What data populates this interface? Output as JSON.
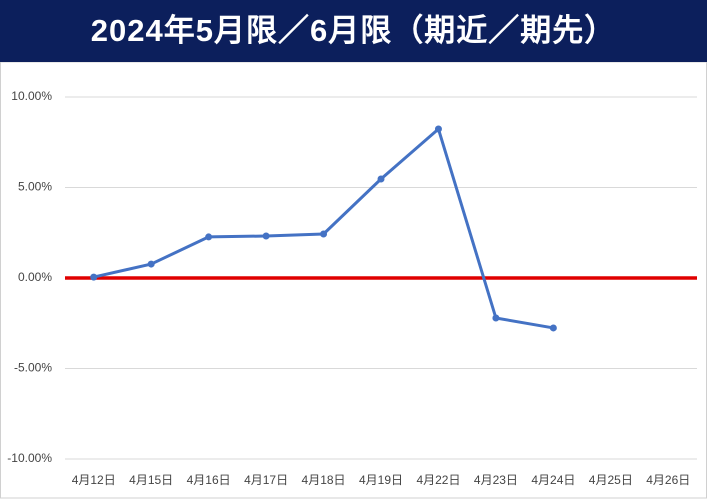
{
  "chart_data": {
    "type": "line",
    "title": "2024年5月限／6月限（期近／期先）",
    "categories": [
      "4月12日",
      "4月15日",
      "4月16日",
      "4月17日",
      "4月18日",
      "4月19日",
      "4月22日",
      "4月23日",
      "4月24日",
      "4月25日",
      "4月26日"
    ],
    "series": [
      {
        "name": "5月限／6月限",
        "color": "#4472c4",
        "values": [
          0.05,
          0.77,
          2.27,
          2.32,
          2.43,
          5.47,
          8.23,
          -2.21,
          -2.76,
          null,
          null
        ]
      }
    ],
    "ylim": [
      -10,
      10
    ],
    "yticks": [
      {
        "value": -10,
        "label": "-10.00%"
      },
      {
        "value": -5,
        "label": "-5.00%"
      },
      {
        "value": 0,
        "label": "0.00%"
      },
      {
        "value": 5,
        "label": "5.00%"
      },
      {
        "value": 10,
        "label": "10.00%"
      }
    ],
    "grid": true,
    "reference_line": {
      "value": 0,
      "color": "#e00000"
    }
  }
}
